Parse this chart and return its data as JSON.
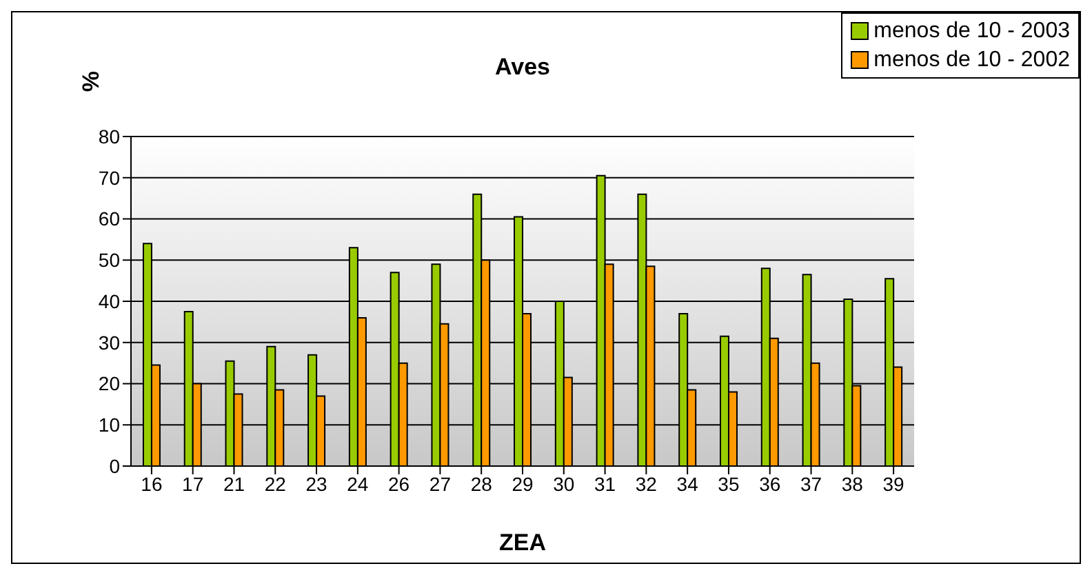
{
  "chart_data": {
    "type": "bar",
    "title": "Aves",
    "xlabel": "ZEA",
    "ylabel": "%",
    "categories": [
      "16",
      "17",
      "21",
      "22",
      "23",
      "24",
      "26",
      "27",
      "28",
      "29",
      "30",
      "31",
      "32",
      "34",
      "35",
      "36",
      "37",
      "38",
      "39"
    ],
    "series": [
      {
        "name": "menos de 10 - 2003",
        "color": "#99cc00",
        "values": [
          54,
          37.5,
          25.5,
          29,
          27,
          53,
          47,
          49,
          66,
          60.5,
          40,
          70.5,
          66,
          37,
          31.5,
          48,
          46.5,
          40.5,
          45.5
        ]
      },
      {
        "name": "menos de 10 - 2002",
        "color": "#ff9900",
        "values": [
          24.5,
          20,
          17.5,
          18.5,
          17,
          36,
          25,
          34.5,
          50,
          37,
          21.5,
          49,
          48.5,
          18.5,
          18,
          31,
          25,
          19.5,
          24
        ]
      }
    ],
    "ylim": [
      0,
      80
    ],
    "yticks": [
      0,
      10,
      20,
      30,
      40,
      50,
      60,
      70,
      80
    ],
    "grid": "y",
    "legend": "top right"
  }
}
